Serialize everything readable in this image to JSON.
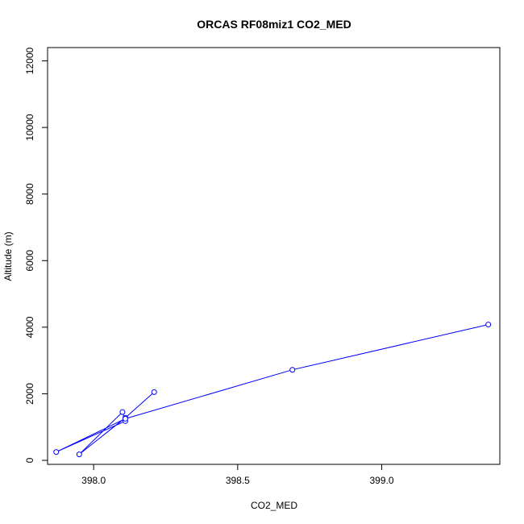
{
  "chart_data": {
    "type": "line",
    "title": "ORCAS RF08miz1 CO2_MED",
    "xlabel": "CO2_MED",
    "ylabel": "Altitude (m)",
    "xlim": [
      397.84,
      399.41
    ],
    "ylim": [
      -120,
      12400
    ],
    "xticks": [
      398.0,
      398.5,
      399.0
    ],
    "xtick_labels": [
      "398.0",
      "398.5",
      "399.0"
    ],
    "yticks": [
      0,
      2000,
      4000,
      6000,
      8000,
      10000,
      12000
    ],
    "ytick_labels": [
      "0",
      "2000",
      "4000",
      "6000",
      "8000",
      "10000",
      "12000"
    ],
    "grid": false,
    "marker": "open-circle",
    "color": "#0000ff",
    "series": [
      {
        "x": [
          398.21,
          398.11,
          397.95,
          398.1,
          398.11,
          397.87,
          398.11,
          398.69,
          399.37
        ],
        "y": [
          2050,
          1280,
          180,
          1450,
          1180,
          250,
          1250,
          2720,
          4080
        ]
      }
    ]
  }
}
